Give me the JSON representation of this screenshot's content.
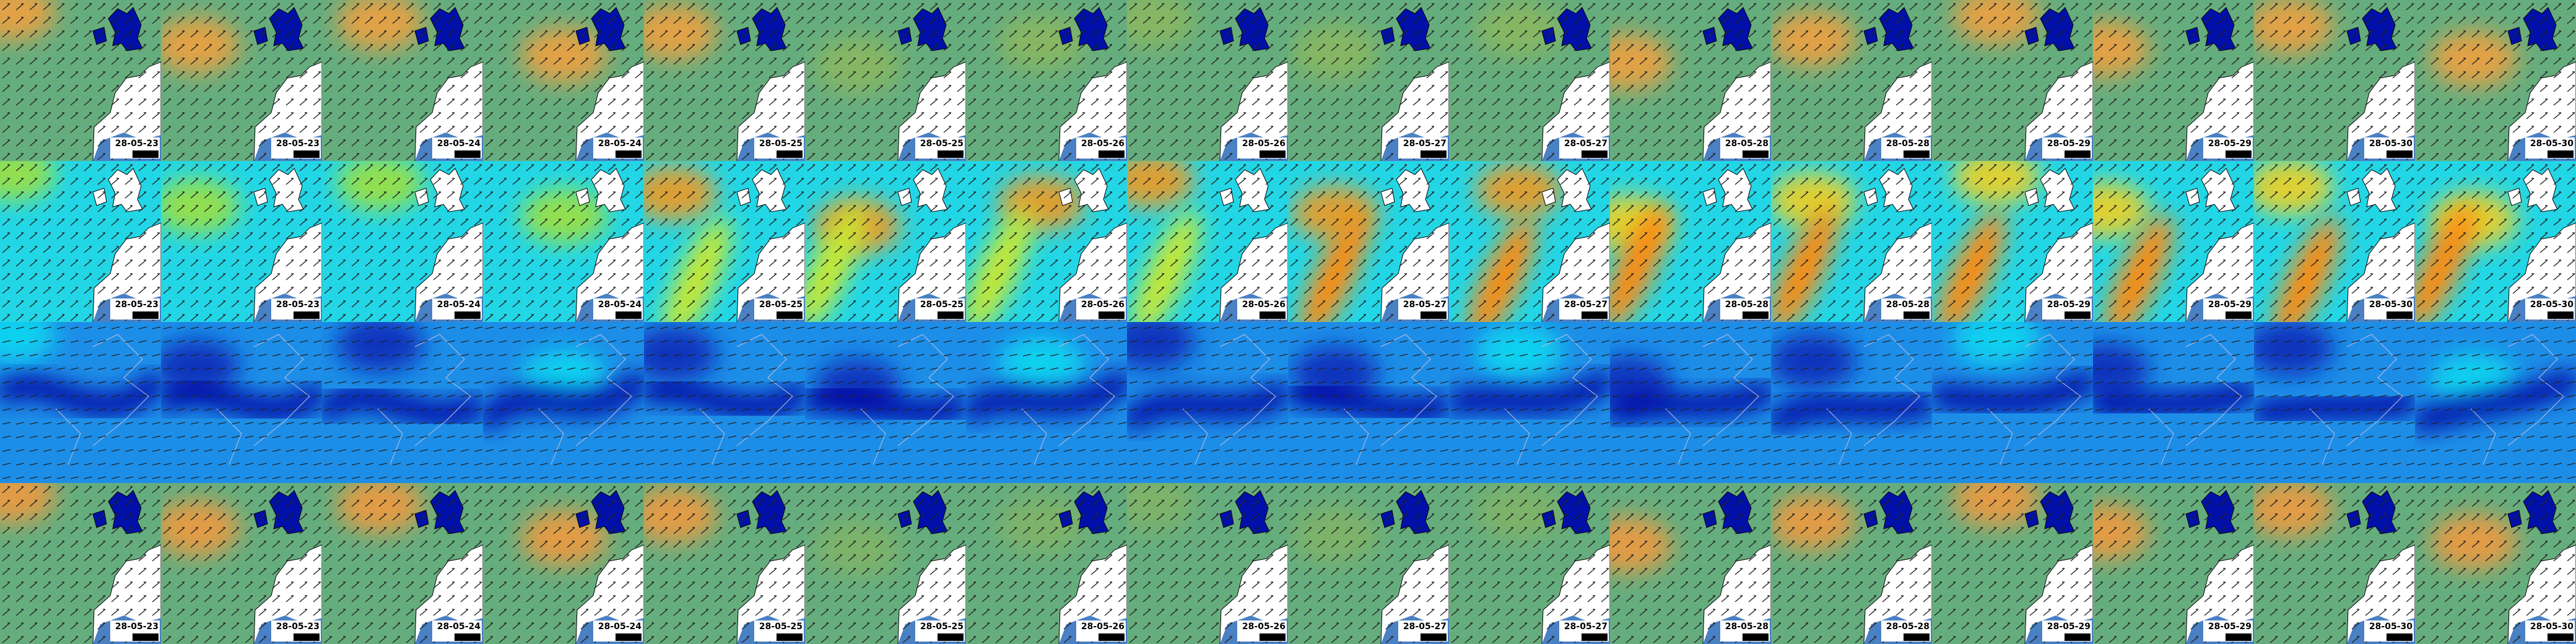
{
  "rows": [
    {
      "labels": [
        "28-05-23",
        "28-05-23",
        "28-05-24",
        "28-05-24",
        "28-05-25",
        "28-05-25",
        "28-05-26",
        "28-05-26",
        "28-05-27",
        "28-05-27",
        "28-05-28",
        "28-05-28",
        "28-05-29",
        "28-05-29",
        "28-05-30",
        "28-05-30"
      ]
    },
    {
      "labels": [
        "28-05-23",
        "28-05-23",
        "28-05-24",
        "28-05-24",
        "28-05-25",
        "28-05-25",
        "28-05-26",
        "28-05-26",
        "28-05-27",
        "28-05-27",
        "28-05-28",
        "28-05-28",
        "28-05-29",
        "28-05-29",
        "28-05-30",
        "28-05-30"
      ]
    },
    {
      "labels": [
        "28-05-23",
        "28-05-23",
        "28-05-24",
        "28-05-24",
        "28-05-25",
        "28-05-25",
        "28-05-26",
        "28-05-26",
        "28-05-27",
        "28-05-27",
        "28-05-28",
        "28-05-28",
        "28-05-29",
        "28-05-29",
        "28-05-30",
        "28-05-30"
      ]
    }
  ]
}
